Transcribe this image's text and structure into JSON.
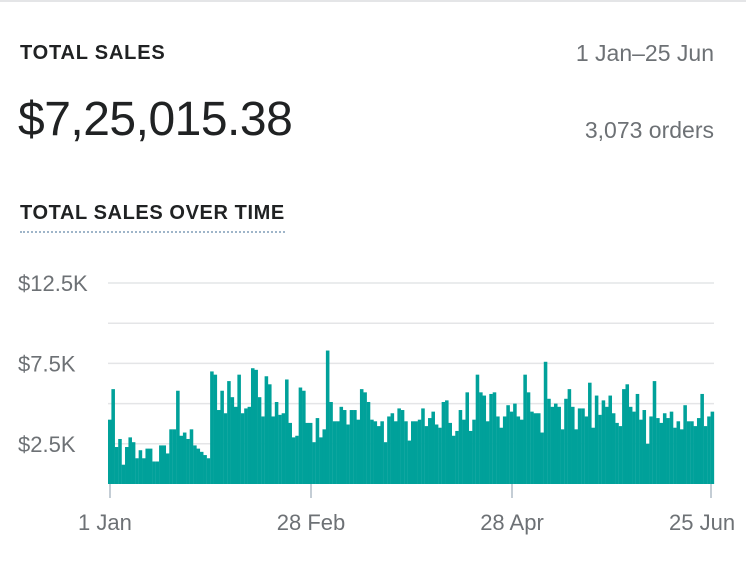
{
  "card": {
    "title": "TOTAL SALES",
    "date_range": "1 Jan–25 Jun",
    "total": "$7,25,015.38",
    "orders": "3,073 orders",
    "chart_title": "TOTAL SALES OVER TIME"
  },
  "colors": {
    "bar": "#00a19a",
    "grid": "#e4e5e7",
    "axis_text": "#6d7175"
  },
  "chart_data": {
    "type": "bar",
    "title": "TOTAL SALES OVER TIME",
    "x_start": "1 Jan",
    "x_end": "25 Jun",
    "x_tick_labels": [
      "1 Jan",
      "28 Feb",
      "28 Apr",
      "25 Jun"
    ],
    "y_tick_labels": [
      "$2.5K",
      "$7.5K",
      "$12.5K"
    ],
    "y_ticks": [
      2500,
      7500,
      12500
    ],
    "ylim": [
      0,
      12500
    ],
    "grid": true,
    "values": [
      4000,
      5900,
      2300,
      2800,
      1200,
      2300,
      2900,
      2600,
      1600,
      2100,
      1600,
      2200,
      2200,
      1400,
      1400,
      2400,
      2400,
      1900,
      3400,
      3400,
      5800,
      3000,
      3200,
      2800,
      3400,
      2400,
      2200,
      2000,
      1800,
      1600,
      7000,
      6800,
      4600,
      5800,
      4400,
      6400,
      5400,
      4800,
      6800,
      4400,
      4700,
      4800,
      7200,
      7100,
      5400,
      4200,
      6700,
      6200,
      4200,
      5100,
      4300,
      4400,
      6500,
      3800,
      2900,
      3000,
      6000,
      5800,
      3800,
      3800,
      2600,
      4100,
      2900,
      3400,
      8300,
      5100,
      3900,
      3900,
      4800,
      4600,
      3700,
      4600,
      4600,
      4000,
      5900,
      5700,
      5100,
      4000,
      3900,
      3600,
      3900,
      2600,
      4200,
      4400,
      3900,
      4700,
      4600,
      3900,
      2700,
      3900,
      3900,
      4000,
      4700,
      3600,
      4100,
      4500,
      3700,
      3500,
      5100,
      5200,
      3800,
      3000,
      3300,
      4600,
      4000,
      5700,
      3300,
      4000,
      6800,
      5700,
      5500,
      3900,
      5600,
      5700,
      4200,
      3500,
      4200,
      4900,
      4500,
      5000,
      4200,
      4000,
      6800,
      5700,
      4500,
      4400,
      4400,
      3200,
      7600,
      5300,
      4800,
      5000,
      4800,
      3400,
      5300,
      5900,
      4800,
      3400,
      4700,
      4700,
      4200,
      6300,
      3500,
      5500,
      4300,
      5200,
      4800,
      5500,
      4400,
      3800,
      3600,
      5900,
      6200,
      4800,
      4500,
      5600,
      4000,
      4600,
      2500,
      4200,
      6400,
      4100,
      3800,
      4400,
      4100,
      4500,
      3500,
      3900,
      3400,
      4900,
      3900,
      3900,
      3600,
      4100,
      5600,
      3600,
      4200,
      4500
    ]
  }
}
